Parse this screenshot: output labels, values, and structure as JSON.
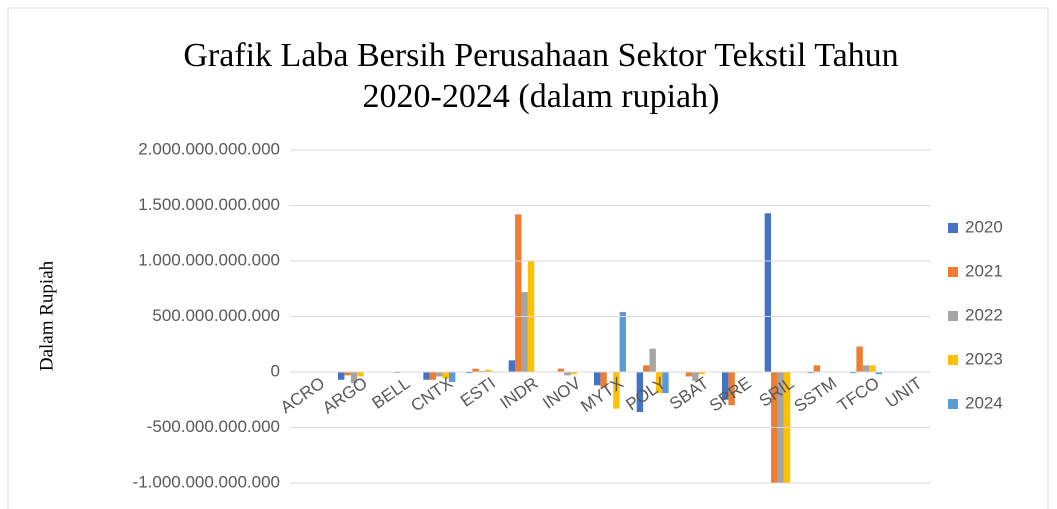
{
  "chart_data": {
    "type": "bar",
    "title": [
      "Grafik Laba Bersih Perusahaan Sektor Tekstil Tahun",
      "2020-2024 (dalam rupiah)"
    ],
    "y_label": "Dalam Rupiah",
    "categories": [
      "ACRO",
      "ARGO",
      "BELL",
      "CNTX",
      "ESTI",
      "INDR",
      "INOV",
      "MYTX",
      "POLY",
      "SBAT",
      "SPRE",
      "SRIL",
      "SSTM",
      "TFCO",
      "UNIT"
    ],
    "series": [
      {
        "name": "2020",
        "color": "#4472c4",
        "values": [
          -2000000000,
          -70000000000,
          -5000000000,
          -70000000000,
          -10000000000,
          105000000000,
          0,
          -120000000000,
          -360000000000,
          -5000000000,
          -250000000000,
          1430000000000,
          -10000000000,
          -10000000000,
          0
        ]
      },
      {
        "name": "2021",
        "color": "#ed7d31",
        "values": [
          -3000000000,
          -30000000000,
          -3000000000,
          -70000000000,
          30000000000,
          1420000000000,
          30000000000,
          -140000000000,
          60000000000,
          -40000000000,
          -300000000000,
          -1050000000000,
          60000000000,
          230000000000,
          0
        ]
      },
      {
        "name": "2022",
        "color": "#a5a5a5",
        "values": [
          -3000000000,
          -100000000000,
          -10000000000,
          -40000000000,
          10000000000,
          720000000000,
          -30000000000,
          0,
          210000000000,
          -80000000000,
          0,
          -1050000000000,
          0,
          60000000000,
          0
        ]
      },
      {
        "name": "2023",
        "color": "#ffc000",
        "values": [
          -2000000000,
          -40000000000,
          -5000000000,
          -60000000000,
          20000000000,
          1000000000000,
          -20000000000,
          -330000000000,
          -190000000000,
          -20000000000,
          0,
          -1050000000000,
          0,
          60000000000,
          0
        ]
      },
      {
        "name": "2024",
        "color": "#5b9bd5",
        "values": [
          0,
          0,
          -3000000000,
          -90000000000,
          5000000000,
          0,
          0,
          540000000000,
          -190000000000,
          0,
          0,
          0,
          0,
          -20000000000,
          0
        ]
      }
    ],
    "ylim": [
      -1000000000000,
      2000000000000
    ],
    "yticks": [
      {
        "value": -1000000000000,
        "label": "-1.000.000.000.000"
      },
      {
        "value": -500000000000,
        "label": "-500.000.000.000"
      },
      0,
      {
        "value": 500000000000,
        "label": "500.000.000.000"
      },
      {
        "value": 1000000000000,
        "label": "1.000.000.000.000"
      },
      {
        "value": 1500000000000,
        "label": "1.500.000.000.000"
      },
      {
        "value": 2000000000000,
        "label": "2.000.000.000.000"
      }
    ],
    "grid": true,
    "legend": "right"
  }
}
